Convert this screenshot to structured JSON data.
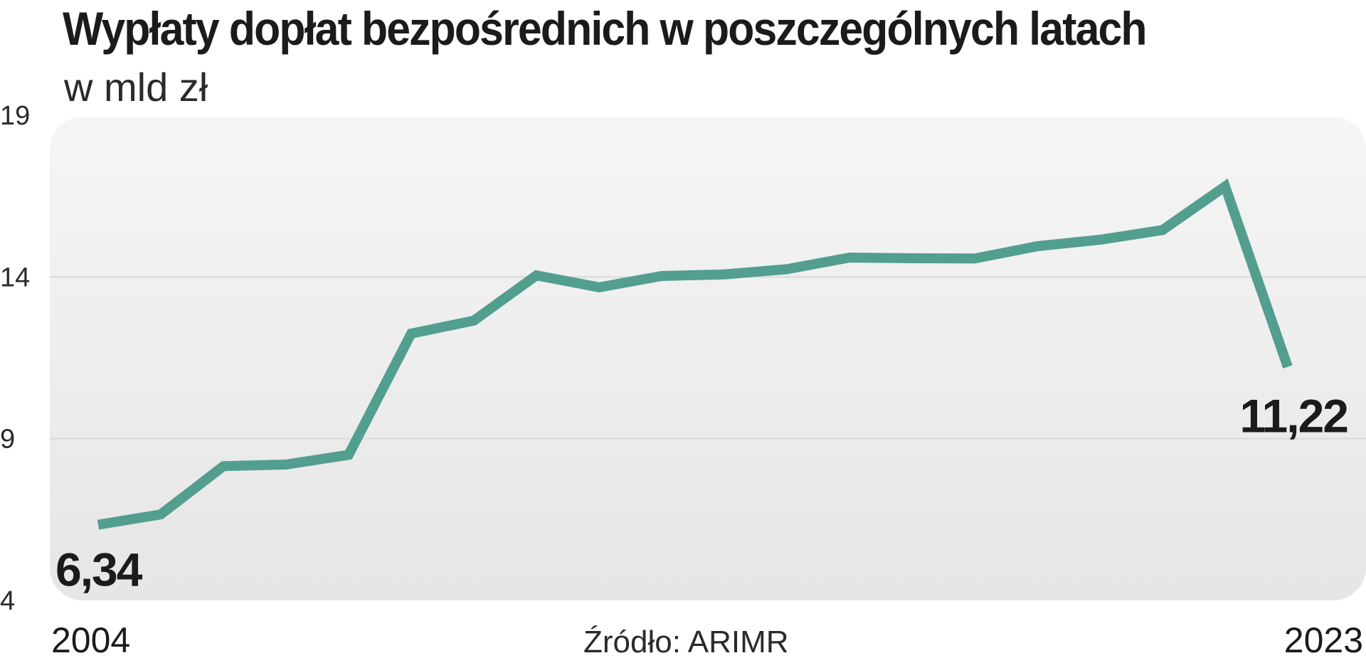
{
  "title": "Wypłaty dopłat bezpośrednich w poszczególnych latach",
  "subtitle": "w mld zł",
  "source": "Źródło: ARIMR",
  "colors": {
    "line": "#529e8f",
    "panel_top": "#f5f5f5",
    "panel_bottom": "#e6e6e6",
    "grid": "#d9d9d9"
  },
  "chart_data": {
    "type": "line",
    "title": "Wypłaty dopłat bezpośrednich w poszczególnych latach",
    "subtitle": "w mld zł",
    "xlabel": "",
    "ylabel": "",
    "x": [
      2004,
      2005,
      2006,
      2007,
      2008,
      2009,
      2010,
      2011,
      2012,
      2013,
      2014,
      2015,
      2016,
      2017,
      2018,
      2019,
      2020,
      2021,
      2022,
      2023
    ],
    "series": [
      {
        "name": "",
        "values": [
          6.34,
          6.66,
          8.15,
          8.2,
          8.5,
          12.25,
          12.65,
          14.05,
          13.68,
          14.03,
          14.08,
          14.24,
          14.6,
          14.58,
          14.57,
          14.95,
          15.15,
          15.45,
          16.8,
          11.22
        ]
      }
    ],
    "ylim": [
      4,
      19
    ],
    "yticks": [
      19,
      14,
      9,
      4
    ],
    "ytick_labels": [
      "19",
      "14",
      "9",
      "4"
    ],
    "xtick_labels": [
      "2004",
      "2023"
    ],
    "data_labels": [
      {
        "text": "6,34",
        "x": 2004
      },
      {
        "text": "11,22",
        "x": 2023
      }
    ],
    "grid": true,
    "legend": "none"
  }
}
